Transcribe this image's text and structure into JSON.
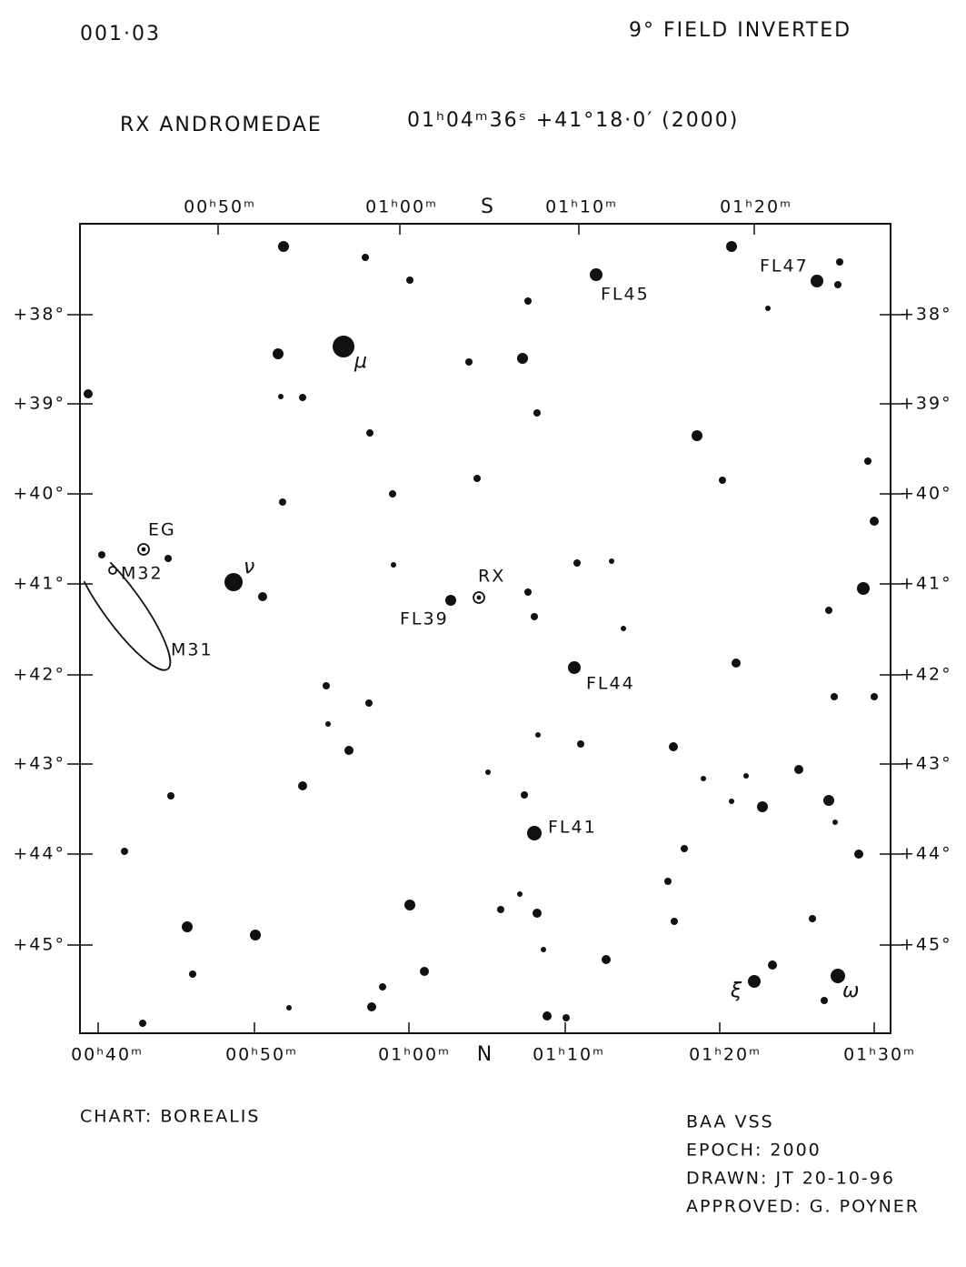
{
  "header": {
    "code": "001·03",
    "field": "9° FIELD INVERTED",
    "star": "RX ANDROMEDAE",
    "position": "01ʰ04ᵐ36ˢ  +41°18·0′ (2000)"
  },
  "axes": {
    "top": [
      "00ʰ50ᵐ",
      "01ʰ00ᵐ",
      "S",
      "01ʰ10ᵐ",
      "01ʰ20ᵐ"
    ],
    "bottom": [
      "00ʰ40ᵐ",
      "00ʰ50ᵐ",
      "01ʰ00ᵐ",
      "N",
      "01ʰ10ᵐ",
      "01ʰ20ᵐ",
      "01ʰ30ᵐ"
    ],
    "dec": [
      "+38°",
      "+39°",
      "+40°",
      "+41°",
      "+42°",
      "+43°",
      "+44°",
      "+45°"
    ]
  },
  "labels": [
    "FL45",
    "FL47",
    "μ",
    "ν",
    "EG",
    "M32",
    "M31",
    "RX",
    "FL39",
    "FL44",
    "FL41",
    "ξ",
    "ω"
  ],
  "footer": {
    "chart": "CHART: BOREALIS",
    "lines": [
      "BAA VSS",
      "EPOCH: 2000",
      "DRAWN: JT 20-10-96",
      "APPROVED: G. POYNER"
    ]
  }
}
